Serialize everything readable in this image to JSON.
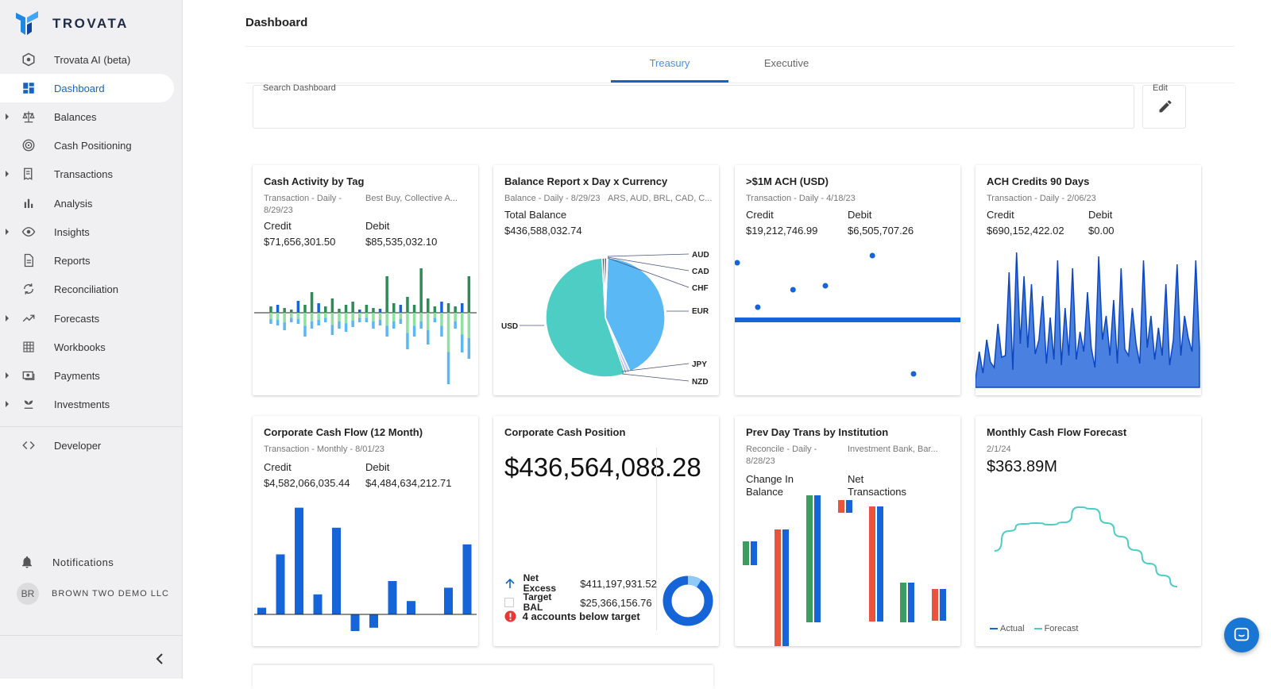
{
  "app": {
    "brand": "TROVATA",
    "accent": "#1565c0",
    "chart_blue": "#1565d8",
    "teal": "#4ecdc4"
  },
  "sidebar": {
    "items": [
      {
        "label": "Trovata AI (beta)",
        "icon": "ai-hexagon-icon"
      },
      {
        "label": "Dashboard",
        "icon": "dashboard-grid-icon",
        "active": true
      },
      {
        "label": "Balances",
        "icon": "scale-icon",
        "expandable": true
      },
      {
        "label": "Cash Positioning",
        "icon": "target-icon"
      },
      {
        "label": "Transactions",
        "icon": "receipt-icon",
        "expandable": true
      },
      {
        "label": "Analysis",
        "icon": "bar-chart-icon"
      },
      {
        "label": "Insights",
        "icon": "eye-icon",
        "expandable": true
      },
      {
        "label": "Reports",
        "icon": "document-icon"
      },
      {
        "label": "Reconciliation",
        "icon": "sync-icon"
      },
      {
        "label": "Forecasts",
        "icon": "trend-icon",
        "expandable": true
      },
      {
        "label": "Workbooks",
        "icon": "grid-icon"
      },
      {
        "label": "Payments",
        "icon": "payment-icon",
        "expandable": true
      },
      {
        "label": "Investments",
        "icon": "plant-icon",
        "expandable": true
      },
      {
        "label": "Developer",
        "icon": "code-icon"
      }
    ],
    "notifications": "Notifications",
    "user_initials": "BR",
    "company": "BROWN TWO DEMO LLC"
  },
  "header": {
    "title": "Dashboard"
  },
  "tabs": [
    {
      "label": "Treasury",
      "active": true
    },
    {
      "label": "Executive"
    }
  ],
  "search": {
    "label": "Search Dashboard",
    "value": ""
  },
  "edit": {
    "label": "Edit"
  },
  "cards": {
    "cash_activity": {
      "title": "Cash Activity by Tag",
      "sub_left": "Transaction - Daily -",
      "sub_left2": "8/29/23",
      "sub_right": "Best Buy, Collective A...",
      "credit_label": "Credit",
      "credit": "$71,656,301.50",
      "debit_label": "Debit",
      "debit": "$85,535,032.10"
    },
    "balance_report": {
      "title": "Balance Report x Day x Currency",
      "sub_left": "Balance - Daily - 8/29/23",
      "sub_right": "ARS, AUD, BRL, CAD, C...",
      "total_label": "Total Balance",
      "total": "$436,588,032.74",
      "labels": [
        "AUD",
        "CAD",
        "CHF",
        "EUR",
        "USD",
        "JPY",
        "NZD"
      ]
    },
    "ach_1m": {
      "title": ">$1M ACH (USD)",
      "sub_left": "Transaction - Daily - 4/18/23",
      "credit_label": "Credit",
      "credit": "$19,212,746.99",
      "debit_label": "Debit",
      "debit": "$6,505,707.26"
    },
    "ach_credits": {
      "title": "ACH Credits 90 Days",
      "sub_left": "Transaction - Daily - 2/06/23",
      "credit_label": "Credit",
      "credit": "$690,152,422.02",
      "debit_label": "Debit",
      "debit": "$0.00"
    },
    "corp_cash_flow": {
      "title": "Corporate Cash Flow (12 Month)",
      "sub_left": "Transaction - Monthly - 8/01/23",
      "credit_label": "Credit",
      "credit": "$4,582,066,035.44",
      "debit_label": "Debit",
      "debit": "$4,484,634,212.71"
    },
    "corp_cash_position": {
      "title": "Corporate Cash Position",
      "value": "$436,564,088.28",
      "net_excess_label": "Net Excess",
      "net_excess": "$411,197,931.52",
      "target_label": "Target BAL",
      "target": "$25,366,156.76",
      "below_target": "4 accounts below target"
    },
    "prev_day": {
      "title": "Prev Day Trans by Institution",
      "sub_left": "Reconcile - Daily -",
      "sub_left2": "8/28/23",
      "sub_right": "Investment Bank, Bar...",
      "change_label": "Change In Balance",
      "net_label": "Net Transactions"
    },
    "monthly_forecast": {
      "title": "Monthly Cash Flow Forecast",
      "sub_left": "2/1/24",
      "value": "$363.89M",
      "legend_actual": "Actual",
      "legend_forecast": "Forecast"
    }
  },
  "chart_data": [
    {
      "type": "bar",
      "chart": "Corporate Cash Flow (12 Month)",
      "values": [
        2,
        18,
        32,
        6,
        26,
        -5,
        -4,
        10,
        4,
        0,
        8,
        21
      ]
    },
    {
      "type": "pie",
      "chart": "Balance Report x Day x Currency",
      "categories": [
        "USD",
        "EUR",
        "JPY",
        "NZD",
        "AUD",
        "CAD",
        "CHF"
      ],
      "values": [
        54.5,
        42.5,
        0.9,
        0.6,
        0.6,
        0.6,
        0.3
      ]
    },
    {
      "type": "line",
      "chart": "Monthly Cash Flow Forecast",
      "series": [
        {
          "name": "Forecast",
          "values": [
            60,
            85,
            94,
            95,
            93,
            96,
            115,
            113,
            95,
            78,
            61,
            44,
            29,
            15
          ]
        }
      ]
    },
    {
      "type": "scatter",
      "chart": ">$1M ACH (USD)",
      "x": [
        0,
        7,
        19,
        30,
        46,
        60
      ],
      "y": [
        7.2,
        1.6,
        3.8,
        4.3,
        8.1,
        -6.8
      ]
    },
    {
      "type": "area",
      "chart": "ACH Credits 90 Days",
      "values": [
        10,
        45,
        18,
        60,
        32,
        25,
        80,
        38,
        40,
        145,
        22,
        170,
        55,
        140,
        50,
        130,
        42,
        60,
        115,
        30,
        88,
        35,
        160,
        28,
        100,
        40,
        150,
        35,
        70,
        45,
        120,
        50,
        25,
        165,
        60,
        90,
        40,
        110,
        30,
        150,
        48,
        40,
        100,
        55,
        30,
        160,
        50,
        90,
        35,
        75,
        40,
        130,
        28,
        60,
        155,
        40,
        90,
        62,
        45,
        160,
        50
      ]
    },
    {
      "type": "bar",
      "chart": "Prev Day Trans by Institution",
      "series": [
        {
          "name": "red",
          "values": [
            110,
            0,
            150,
            0,
            0,
            40
          ]
        },
        {
          "name": "blue",
          "values": [
            110,
            0,
            150,
            0,
            50,
            40
          ]
        },
        {
          "name": "green",
          "values": [
            0,
            160,
            0,
            50,
            0,
            0
          ]
        }
      ]
    }
  ]
}
